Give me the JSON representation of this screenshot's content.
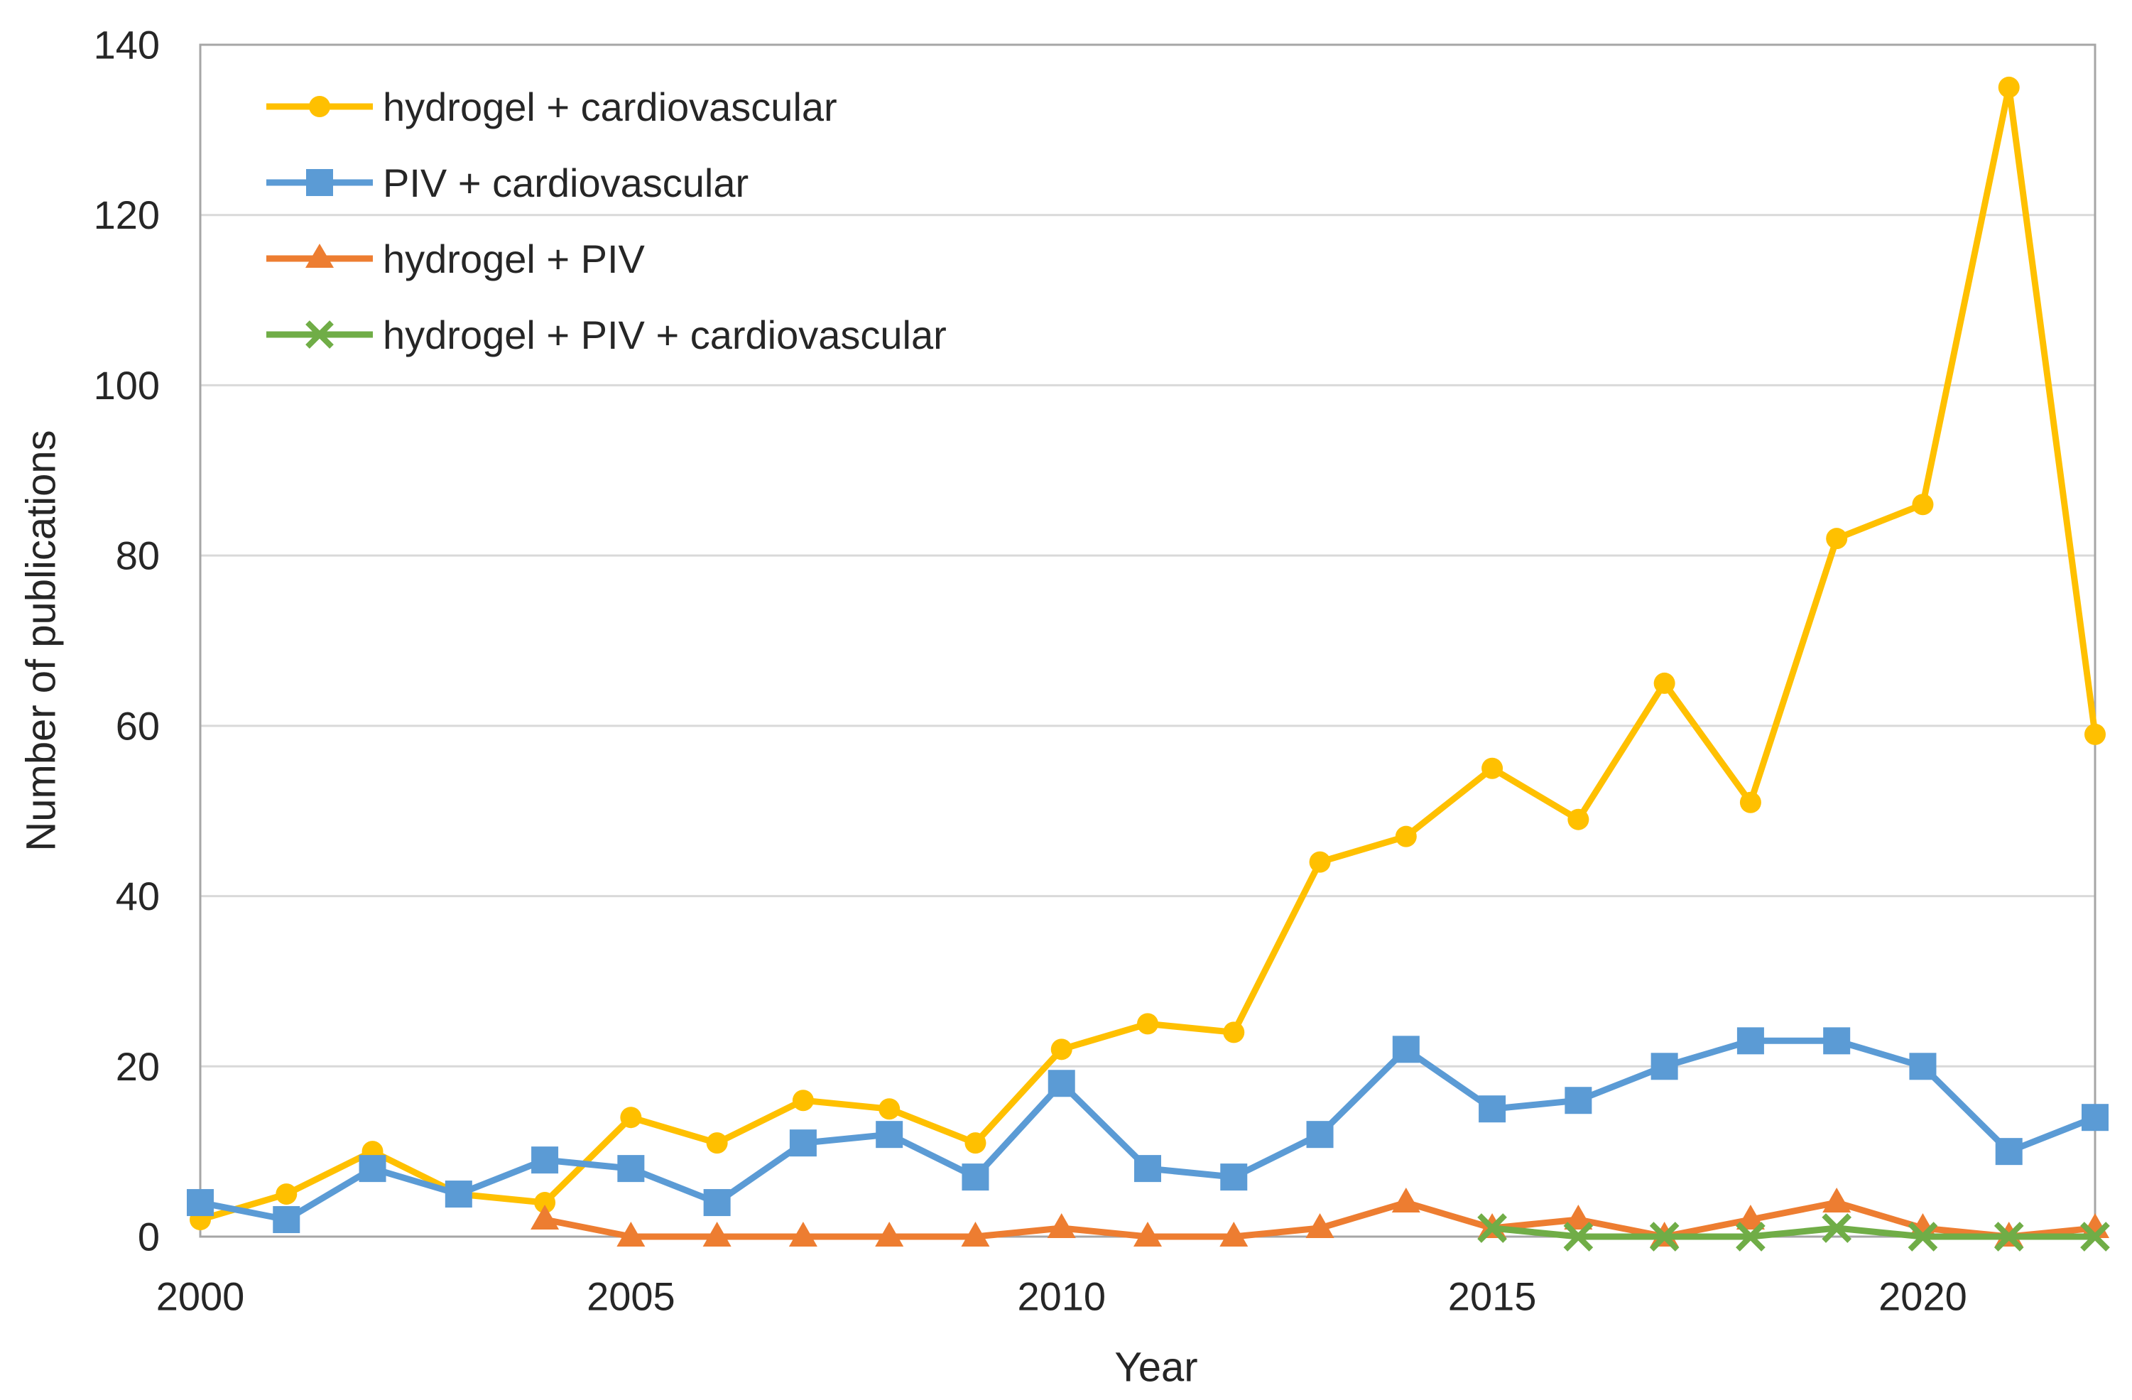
{
  "chart_data": {
    "type": "line",
    "title": "",
    "xlabel": "Year",
    "ylabel": "Number of publications",
    "ylim": [
      0,
      140
    ],
    "ytick_step": 20,
    "yticks": [
      0,
      20,
      40,
      60,
      80,
      100,
      120,
      140
    ],
    "x": [
      2000,
      2001,
      2002,
      2003,
      2004,
      2005,
      2006,
      2007,
      2008,
      2009,
      2010,
      2011,
      2012,
      2013,
      2014,
      2015,
      2016,
      2017,
      2018,
      2019,
      2020,
      2021,
      2022
    ],
    "xticks_labeled": [
      2000,
      2005,
      2010,
      2015,
      2020
    ],
    "grid": "horizontal",
    "legend_position": "top-left-inside",
    "axis_color": "#A6A6A6",
    "gridline_color": "#D9D9D9",
    "text_color": "#262626",
    "series": [
      {
        "name": "hydrogel + cardiovascular",
        "color": "#FFC000",
        "marker": "circle",
        "values": [
          2,
          5,
          10,
          5,
          4,
          14,
          11,
          16,
          15,
          11,
          22,
          25,
          24,
          44,
          47,
          55,
          49,
          65,
          51,
          82,
          86,
          135,
          59
        ]
      },
      {
        "name": "PIV + cardiovascular",
        "color": "#5B9BD5",
        "marker": "square",
        "values": [
          4,
          2,
          8,
          5,
          9,
          8,
          4,
          11,
          12,
          7,
          18,
          8,
          7,
          12,
          22,
          15,
          16,
          20,
          23,
          23,
          20,
          10,
          14
        ]
      },
      {
        "name": "hydrogel + PIV",
        "color": "#ED7D31",
        "marker": "triangle",
        "values": [
          null,
          null,
          null,
          null,
          2,
          0,
          0,
          0,
          0,
          0,
          1,
          0,
          0,
          1,
          4,
          1,
          2,
          0,
          2,
          4,
          1,
          0,
          1
        ]
      },
      {
        "name": "hydrogel + PIV + cardiovascular",
        "color": "#70AD47",
        "marker": "x",
        "values": [
          null,
          null,
          null,
          null,
          null,
          null,
          null,
          null,
          null,
          null,
          null,
          null,
          null,
          null,
          null,
          1,
          0,
          0,
          0,
          1,
          0,
          0,
          0
        ]
      }
    ]
  }
}
